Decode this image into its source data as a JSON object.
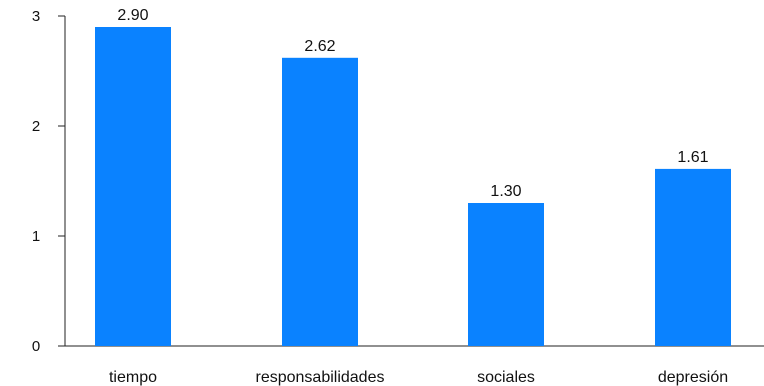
{
  "chart_data": {
    "type": "bar",
    "categories": [
      "tiempo",
      "responsabilidades",
      "sociales",
      "depresión"
    ],
    "values": [
      2.9,
      2.62,
      1.3,
      1.61
    ],
    "value_labels": [
      "2.90",
      "2.62",
      "1.30",
      "1.61"
    ],
    "yticks": [
      0,
      1,
      2,
      3
    ],
    "ylim": [
      0,
      3.1
    ],
    "grid": false,
    "legend": "none",
    "bar_color": "#0a82ff",
    "axis_color": "#222222"
  }
}
